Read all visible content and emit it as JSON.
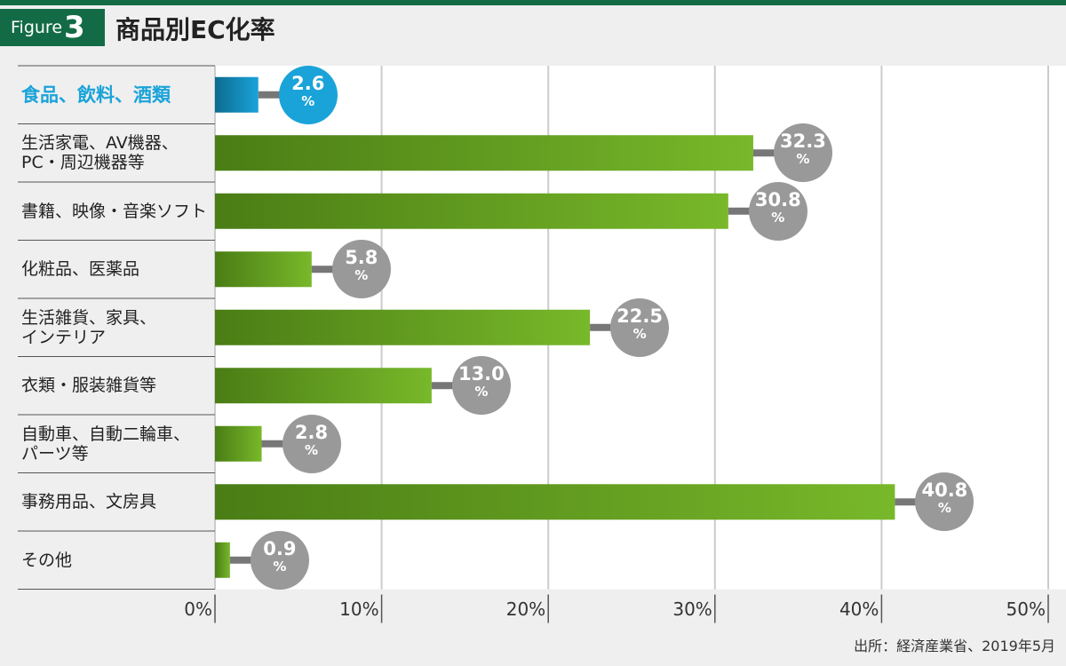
{
  "header": {
    "figure_label": "Figure",
    "figure_number": "3",
    "title": "商品別EC化率"
  },
  "source": "出所：経済産業省、2019年5月",
  "colors": {
    "green_dark": "#4a7d15",
    "green_light": "#78b82a",
    "highlight": "#1aa3d9",
    "bubble": "#999999",
    "brand": "#136b45"
  },
  "chart_data": {
    "type": "bar",
    "orientation": "horizontal",
    "title": "商品別EC化率",
    "unit": "%",
    "xlim": [
      0,
      50
    ],
    "xticks": [
      "0%",
      "10%",
      "20%",
      "30%",
      "40%",
      "50%"
    ],
    "categories": [
      "食品、飲料、酒類",
      "生活家電、AV機器、\nPC・周辺機器等",
      "書籍、映像・音楽ソフト",
      "化粧品、医薬品",
      "生活雑貨、家具、\nインテリア",
      "衣類・服装雑貨等",
      "自動車、自動二輪車、\nパーツ等",
      "事務用品、文房具",
      "その他"
    ],
    "values": [
      2.6,
      32.3,
      30.8,
      5.8,
      22.5,
      13.0,
      2.8,
      40.8,
      0.9
    ],
    "value_labels": [
      "2.6",
      "32.3",
      "30.8",
      "5.8",
      "22.5",
      "13.0",
      "2.8",
      "40.8",
      "0.9"
    ],
    "highlight_index": 0,
    "grid": true
  }
}
